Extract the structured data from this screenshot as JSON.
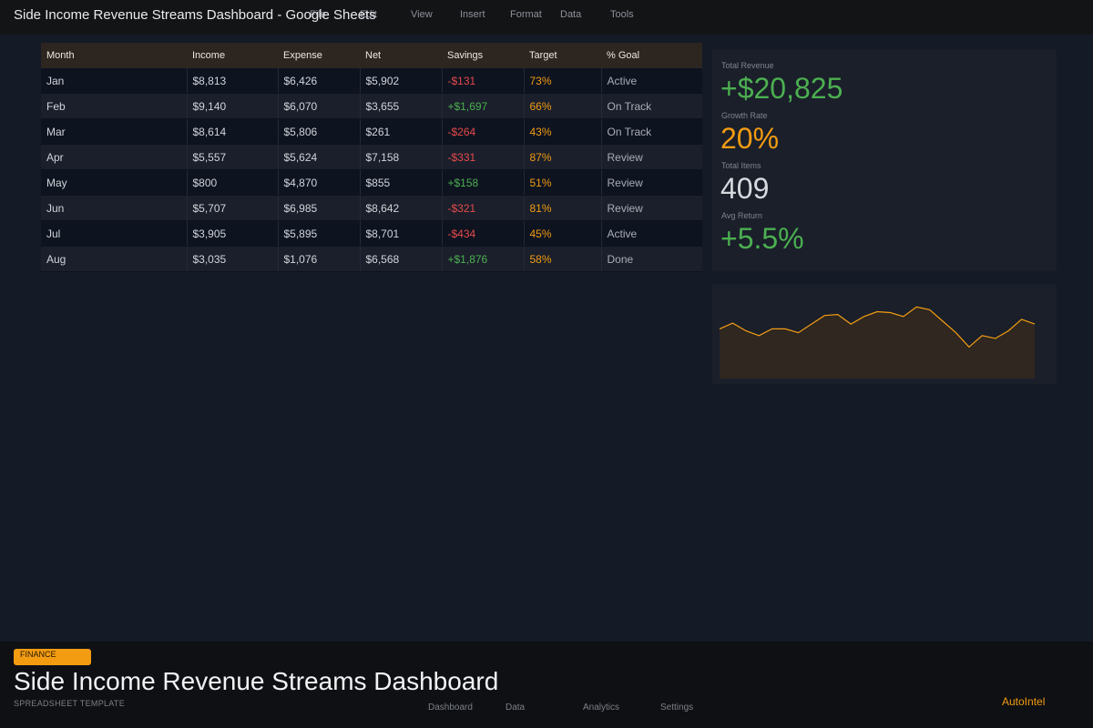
{
  "window": {
    "title": "Side Income Revenue Streams Dashboard - Google Sheets"
  },
  "menu": [
    "File",
    "Edit",
    "View",
    "Insert",
    "Format",
    "Data",
    "Tools"
  ],
  "table": {
    "headers": [
      "Month",
      "Income",
      "Expense",
      "Net",
      "Savings",
      "Target",
      "% Goal"
    ],
    "rows": [
      [
        "Jan",
        "$8,813",
        "$6,426",
        "$5,902",
        "-$131",
        "73%",
        "Active"
      ],
      [
        "Feb",
        "$9,140",
        "$6,070",
        "$3,655",
        "+$1,697",
        "66%",
        "On Track"
      ],
      [
        "Mar",
        "$8,614",
        "$5,806",
        "$261",
        "-$264",
        "43%",
        "On Track"
      ],
      [
        "Apr",
        "$5,557",
        "$5,624",
        "$7,158",
        "-$331",
        "87%",
        "Review"
      ],
      [
        "May",
        "$800",
        "$4,870",
        "$855",
        "+$158",
        "51%",
        "Review"
      ],
      [
        "Jun",
        "$5,707",
        "$6,985",
        "$8,642",
        "-$321",
        "81%",
        "Review"
      ],
      [
        "Jul",
        "$3,905",
        "$5,895",
        "$8,701",
        "-$434",
        "45%",
        "Active"
      ],
      [
        "Aug",
        "$3,035",
        "$1,076",
        "$6,568",
        "+$1,876",
        "58%",
        "Done"
      ]
    ]
  },
  "kpis": [
    {
      "label": "Total Revenue",
      "value": "+$20,825",
      "color": "#4caf50"
    },
    {
      "label": "Growth Rate",
      "value": "20%",
      "color": "#f39c12"
    },
    {
      "label": "Total Items",
      "value": "409",
      "color": "#d6d9de"
    },
    {
      "label": "Avg Return",
      "value": "+5.5%",
      "color": "#4caf50"
    }
  ],
  "sparkline": {
    "color": "#f39c12",
    "fill": "#2f2720",
    "values": [
      52,
      58,
      50,
      45,
      52,
      52,
      48,
      57,
      66,
      67,
      57,
      65,
      70,
      69,
      65,
      75,
      72,
      60,
      48,
      33,
      45,
      42,
      50,
      62,
      57
    ]
  },
  "footer": {
    "badge": "FINANCE",
    "title": "Side Income Revenue Streams Dashboard",
    "subtitle": "SPREADSHEET TEMPLATE",
    "nav": [
      "Dashboard",
      "Data",
      "Analytics",
      "Settings"
    ],
    "brand": "AutoIntel"
  }
}
